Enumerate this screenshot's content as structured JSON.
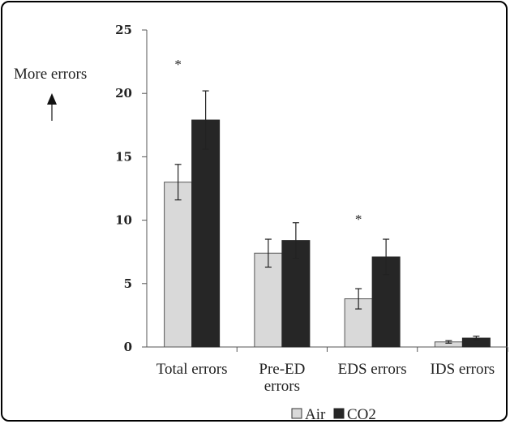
{
  "chart_data": {
    "type": "bar",
    "categories": [
      "Total errors",
      "Pre-ED errors",
      "EDS errors",
      "IDS errors"
    ],
    "series": [
      {
        "name": "Air",
        "values": [
          13.0,
          7.4,
          3.8,
          0.4
        ],
        "errors": [
          1.4,
          1.1,
          0.8,
          0.1
        ],
        "color": "#d9d9d9"
      },
      {
        "name": "CO2",
        "values": [
          17.9,
          8.4,
          7.1,
          0.7
        ],
        "errors": [
          2.3,
          1.4,
          1.4,
          0.15
        ],
        "color": "#262626"
      }
    ],
    "ylim": [
      0,
      25
    ],
    "yticks": [
      "0",
      "5",
      "10",
      "15",
      "20",
      "25"
    ],
    "ylabel": "More errors",
    "significance": [
      {
        "category": "Total errors",
        "label": "*"
      },
      {
        "category": "EDS errors",
        "label": "*"
      }
    ],
    "legend_position": "bottom",
    "grid": false
  }
}
